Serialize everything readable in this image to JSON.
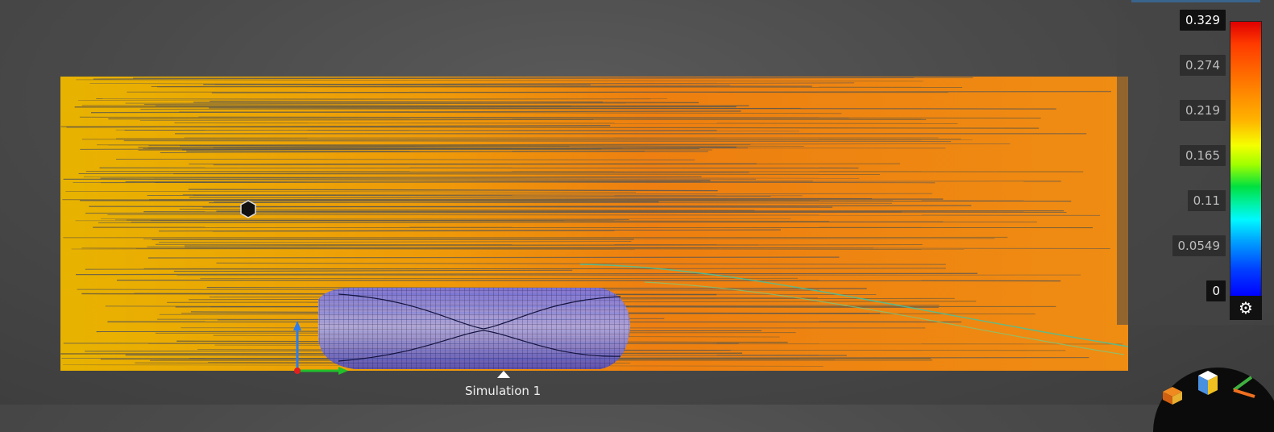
{
  "viewport": {
    "simulation_label": "Simulation 1"
  },
  "legend": {
    "ticks": [
      "0.329",
      "0.274",
      "0.219",
      "0.165",
      "0.11",
      "0.0549",
      "0"
    ],
    "min": 0,
    "max": 0.329,
    "settings_icon": "gear-icon"
  },
  "colors": {
    "streamline_slow": "#e8b300",
    "streamline_fast": "#ee7f10",
    "model_fill": "#5a5ee0",
    "accent": "#2b8be0"
  },
  "icons": {
    "probe": "hexagon-marker-icon",
    "axis_triad": "axis-triad-icon",
    "view_cube": "view-cube-icon"
  }
}
